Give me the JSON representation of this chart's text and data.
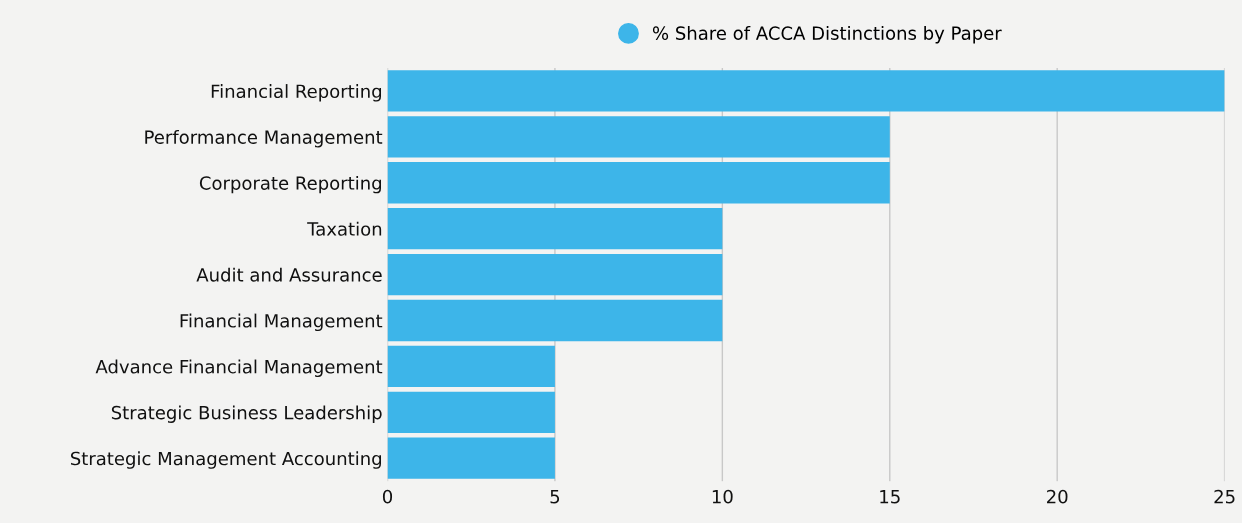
{
  "chart_data": {
    "type": "bar",
    "orientation": "horizontal",
    "categories": [
      "Financial Reporting",
      "Performance Management",
      "Corporate Reporting",
      "Taxation",
      "Audit and Assurance",
      "Financial Management",
      "Advance Financial Management",
      "Strategic Business Leadership",
      "Strategic Management Accounting"
    ],
    "series": [
      {
        "name": "% Share of ACCA Distinctions by Paper",
        "color": "#3db5e9",
        "values": [
          25,
          15,
          15,
          10,
          10,
          10,
          5,
          5,
          5
        ]
      }
    ],
    "xlim": [
      0,
      25
    ],
    "xticks": [
      0,
      5,
      10,
      15,
      20,
      25
    ],
    "grid": "x",
    "legend": "top"
  }
}
